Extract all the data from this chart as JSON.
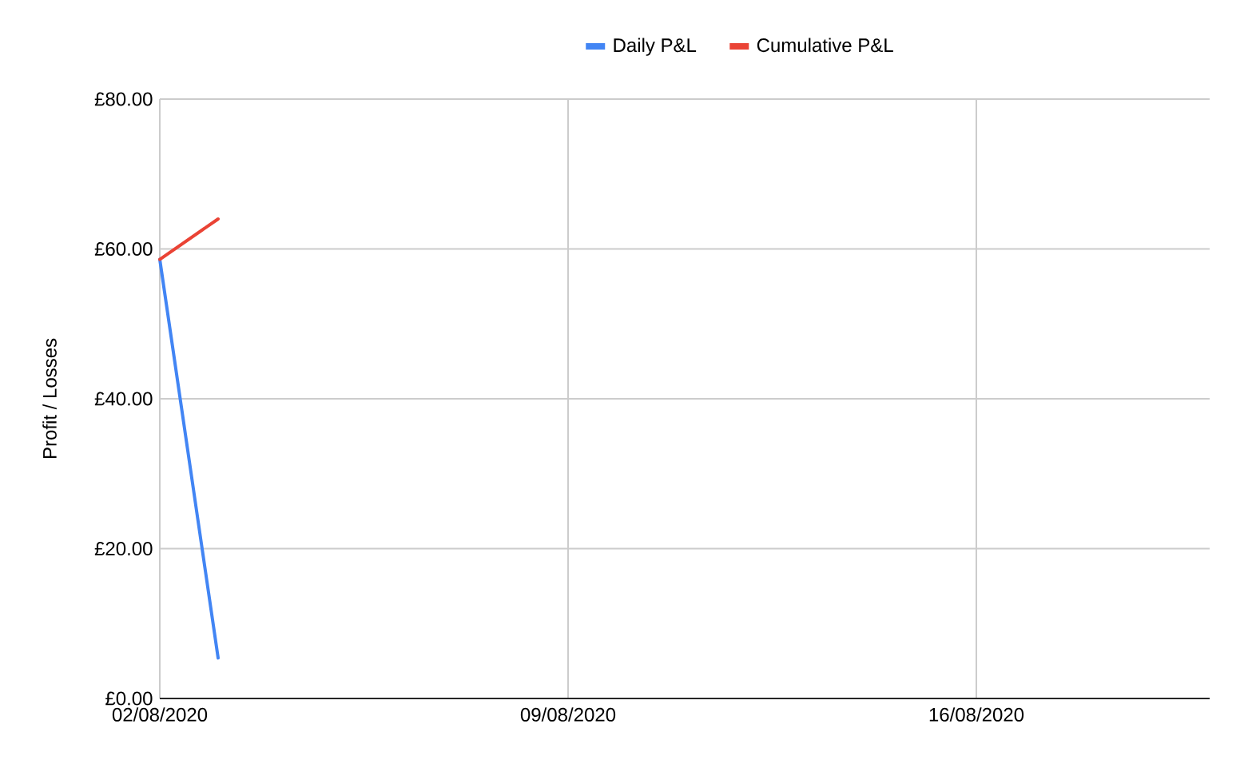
{
  "chart_data": {
    "type": "line",
    "ylabel": "Profit / Losses",
    "x": [
      "2020-08-02",
      "2020-08-03"
    ],
    "series": [
      {
        "name": "Daily P&L",
        "color": "#4285f4",
        "values": [
          58.6,
          5.4
        ]
      },
      {
        "name": "Cumulative P&L",
        "color": "#ea4335",
        "values": [
          58.6,
          64.0
        ]
      }
    ],
    "xlim": [
      "2020-08-02",
      "2020-08-20"
    ],
    "xticks": [
      {
        "value": "2020-08-02",
        "label": "02/08/2020"
      },
      {
        "value": "2020-08-09",
        "label": "09/08/2020"
      },
      {
        "value": "2020-08-16",
        "label": "16/08/2020"
      }
    ],
    "ylim": [
      0,
      80
    ],
    "yticks": [
      {
        "value": 0,
        "label": "£0.00"
      },
      {
        "value": 20,
        "label": "£20.00"
      },
      {
        "value": 40,
        "label": "£40.00"
      },
      {
        "value": 60,
        "label": "£60.00"
      },
      {
        "value": 80,
        "label": "£80.00"
      }
    ],
    "grid": true,
    "legend": "top",
    "marker": "none",
    "line_style": "solid"
  }
}
